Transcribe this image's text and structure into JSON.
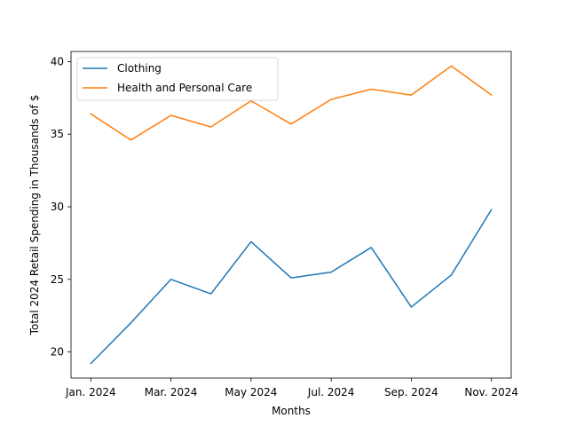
{
  "chart_data": {
    "type": "line",
    "xlabel": "Months",
    "ylabel": "Total 2024 Retail Spending in Thousands of $",
    "x": [
      "Jan. 2024",
      "Feb. 2024",
      "Mar. 2024",
      "Apr. 2024",
      "May 2024",
      "Jun. 2024",
      "Jul. 2024",
      "Aug. 2024",
      "Sep. 2024",
      "Oct. 2024",
      "Nov. 2024"
    ],
    "x_ticks": [
      "Jan. 2024",
      "Mar. 2024",
      "May 2024",
      "Jul. 2024",
      "Sep. 2024",
      "Nov. 2024"
    ],
    "y_ticks": [
      20,
      25,
      30,
      35,
      40
    ],
    "ylim": [
      18.2,
      40.7
    ],
    "grid": false,
    "legend_position": "upper-left",
    "series": [
      {
        "name": "Clothing",
        "color": "#1f77b4",
        "values": [
          19.2,
          22.0,
          25.0,
          24.0,
          27.6,
          25.1,
          25.5,
          27.2,
          23.1,
          25.3,
          29.8
        ]
      },
      {
        "name": "Health and Personal Care",
        "color": "#ff7f0e",
        "values": [
          36.4,
          34.6,
          36.3,
          35.5,
          37.3,
          35.7,
          37.4,
          38.1,
          37.7,
          39.7,
          37.7
        ]
      }
    ]
  }
}
